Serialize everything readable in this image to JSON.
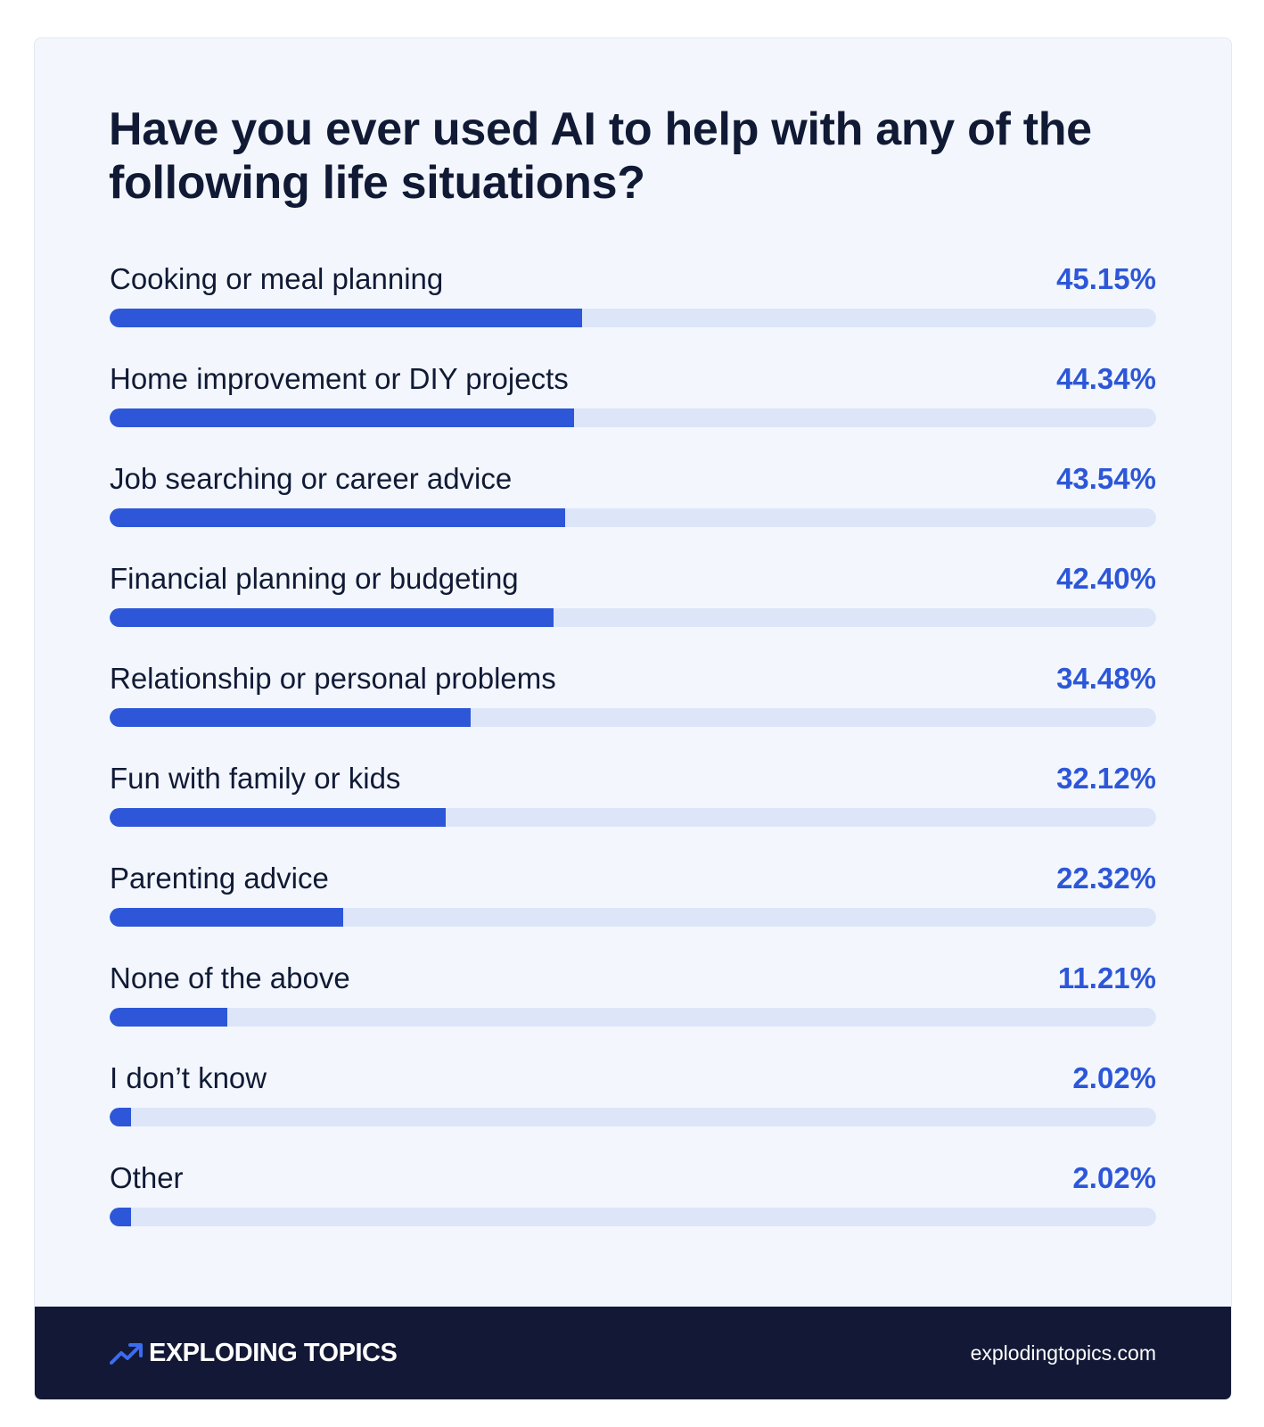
{
  "chart_data": {
    "type": "bar",
    "title": "Have you ever used AI to help with any of the following life situations?",
    "value_suffix": "%",
    "categories": [
      "Cooking or meal planning",
      "Home improvement or DIY projects",
      "Job searching or career advice",
      "Financial planning or budgeting",
      "Relationship or personal problems",
      "Fun with family or kids",
      "Parenting advice",
      "None of the above",
      "I don’t know",
      "Other"
    ],
    "values": [
      45.15,
      44.34,
      43.54,
      42.4,
      34.48,
      32.12,
      22.32,
      11.21,
      2.02,
      2.02
    ],
    "value_labels": [
      "45.15%",
      "44.34%",
      "43.54%",
      "42.40%",
      "34.48%",
      "32.12%",
      "22.32%",
      "11.21%",
      "2.02%",
      "2.02%"
    ],
    "xlim": [
      0,
      100
    ],
    "orientation": "horizontal",
    "colors": {
      "bar": "#2d57d8",
      "track": "#dde6f8",
      "value_text": "#2d57d8"
    }
  },
  "footer": {
    "brand_name": "EXPLODING TOPICS",
    "brand_icon": "trending-up-arrow-icon",
    "website": "explodingtopics.com"
  },
  "colors": {
    "card_background": "#f3f7fd",
    "footer_background": "#131836",
    "title_text": "#111a35"
  }
}
